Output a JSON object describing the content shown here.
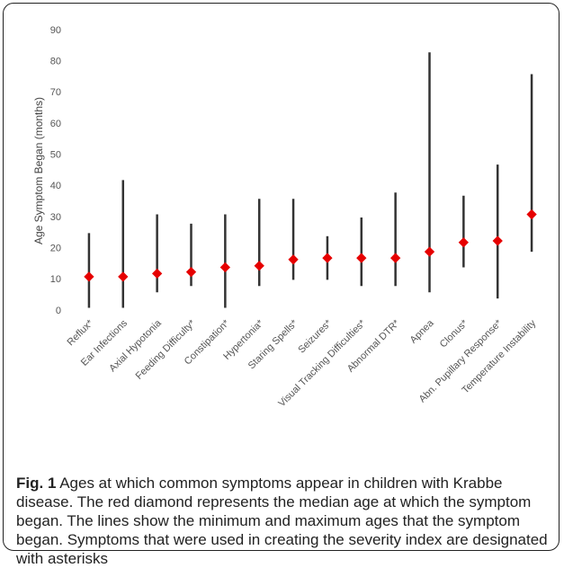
{
  "chart_data": {
    "type": "range",
    "y_label": "Age Symptom Began (months)",
    "categories": [
      "Reflux*",
      "Ear Infections",
      "Axial Hypotonia",
      "Feeding Difficulty*",
      "Constipation*",
      "Hypertonia*",
      "Staring Spells*",
      "Seizures*",
      "Visual Tracking Difficulties*",
      "Abnormal DTR*",
      "Apnea",
      "Clonus*",
      "Abn. Pupillary Response*",
      "Temperature Instability"
    ],
    "low": [
      1,
      1,
      6,
      8,
      1,
      8,
      10,
      10,
      8,
      8,
      6,
      14,
      4,
      19
    ],
    "high": [
      25,
      42,
      31,
      28,
      31,
      36,
      36,
      24,
      30,
      38,
      83,
      37,
      47,
      76
    ],
    "values": [
      11,
      11,
      12,
      12.5,
      14,
      14.5,
      16.5,
      17,
      17,
      17,
      19,
      22,
      22.5,
      31
    ],
    "line_color": "#333333",
    "color": "#e60000",
    "ylim": [
      0,
      90
    ],
    "yticks": [
      0,
      10,
      20,
      30,
      40,
      50,
      60,
      70,
      80,
      90
    ],
    "grid": false
  },
  "caption": {
    "label": "Fig. 1",
    "text": "Ages at which common symptoms appear in children with Krabbe disease. The red diamond represents the median age at which the symptom began. The lines show the minimum and maximum ages that the symptom began. Symptoms that were used in creating the severity index are designated with asterisks"
  }
}
